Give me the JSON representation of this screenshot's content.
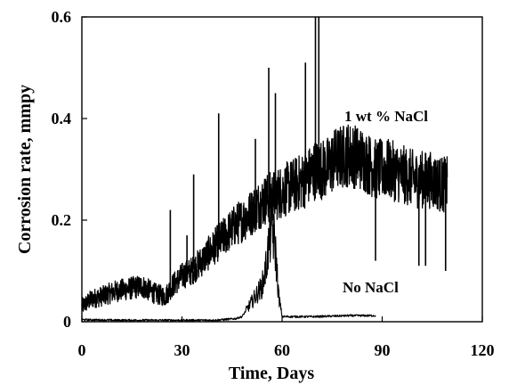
{
  "chart_data": {
    "type": "line",
    "title": "",
    "xlabel": "Time, Days",
    "ylabel": "Corrosion rate, mmpy",
    "xlim": [
      0,
      120
    ],
    "ylim": [
      0,
      0.6
    ],
    "xticks": [
      0,
      30,
      60,
      90,
      120
    ],
    "yticks": [
      0,
      0.2,
      0.4,
      0.6
    ],
    "xtick_labels": [
      "0",
      "30",
      "60",
      "90",
      "120"
    ],
    "ytick_labels": [
      "0",
      "0.2",
      "0.4",
      "0.6"
    ],
    "grid": false,
    "legend": "none (series labeled inline)",
    "series": [
      {
        "name": "1 wt % NaCl",
        "color": "#000000",
        "x": [
          0,
          3,
          6,
          10,
          14,
          18,
          22,
          25,
          27,
          30,
          33,
          36,
          40,
          43,
          46,
          50,
          53,
          55,
          58,
          61,
          64,
          67,
          70,
          73,
          76,
          80,
          84,
          88,
          92,
          96,
          100,
          104,
          108,
          109.5
        ],
        "y": [
          0.03,
          0.045,
          0.05,
          0.06,
          0.065,
          0.07,
          0.055,
          0.05,
          0.07,
          0.09,
          0.1,
          0.12,
          0.15,
          0.17,
          0.19,
          0.21,
          0.23,
          0.24,
          0.25,
          0.26,
          0.27,
          0.28,
          0.3,
          0.3,
          0.32,
          0.33,
          0.32,
          0.3,
          0.3,
          0.29,
          0.28,
          0.28,
          0.27,
          0.27
        ],
        "spikes": [
          {
            "x": 26.5,
            "y": 0.22
          },
          {
            "x": 31.5,
            "y": 0.17
          },
          {
            "x": 33.5,
            "y": 0.29
          },
          {
            "x": 41,
            "y": 0.41
          },
          {
            "x": 52,
            "y": 0.36
          },
          {
            "x": 56,
            "y": 0.5
          },
          {
            "x": 58,
            "y": 0.45
          },
          {
            "x": 67,
            "y": 0.51
          },
          {
            "x": 70,
            "y": 0.6
          },
          {
            "x": 71,
            "y": 0.6
          },
          {
            "x": 88,
            "y": 0.12
          },
          {
            "x": 101,
            "y": 0.11
          },
          {
            "x": 103,
            "y": 0.11
          },
          {
            "x": 109,
            "y": 0.1
          }
        ]
      },
      {
        "name": "No NaCl",
        "color": "#000000",
        "x": [
          0,
          10,
          20,
          30,
          40,
          46,
          48,
          50,
          52,
          54,
          55,
          56,
          57,
          58,
          59,
          60,
          62,
          70,
          80,
          88
        ],
        "y": [
          0.004,
          0.003,
          0.003,
          0.003,
          0.003,
          0.006,
          0.01,
          0.03,
          0.05,
          0.07,
          0.1,
          0.15,
          0.19,
          0.14,
          0.05,
          0.01,
          0.01,
          0.01,
          0.012,
          0.012
        ]
      }
    ],
    "annotations": [
      "1 wt % NaCl",
      "No NaCl"
    ]
  }
}
